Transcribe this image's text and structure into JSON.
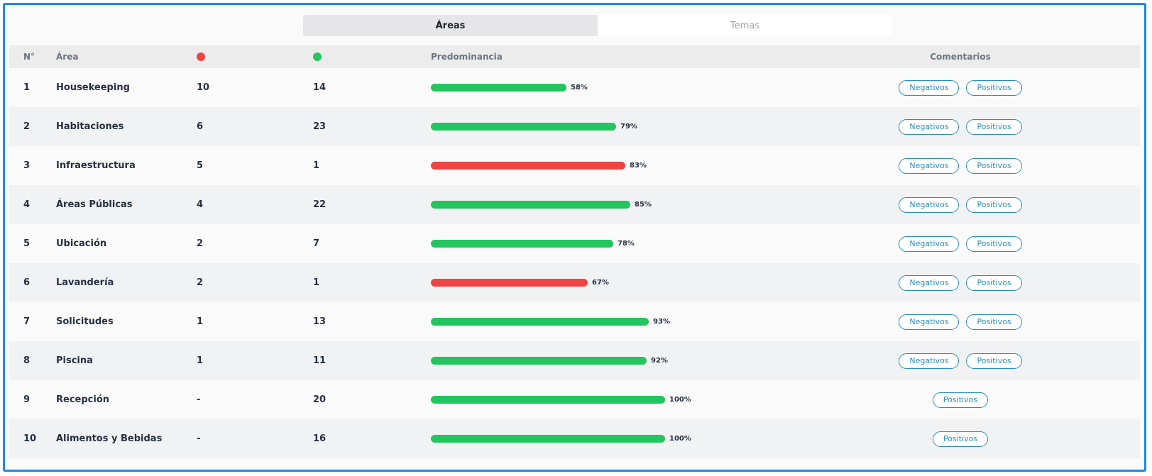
{
  "tabs": [
    {
      "label": "Áreas",
      "active": true
    },
    {
      "label": "Temas",
      "active": false
    }
  ],
  "header": {
    "num": "N°",
    "area": "Área",
    "negative_icon": "red-dot",
    "positive_icon": "green-dot",
    "predominance": "Predominancia",
    "comments": "Comentarios"
  },
  "colors": {
    "positive": "#22c55e",
    "negative": "#ef4444",
    "accent": "#2a8fbd",
    "frame": "#1e88e5"
  },
  "buttons": {
    "negative": "Negativos",
    "positive": "Positivos"
  },
  "rows": [
    {
      "num": "1",
      "area": "Housekeeping",
      "neg": "10",
      "pos": "14",
      "pct": "58%",
      "value": 58,
      "color": "green",
      "has_negative": true
    },
    {
      "num": "2",
      "area": "Habitaciones",
      "neg": "6",
      "pos": "23",
      "pct": "79%",
      "value": 79,
      "color": "green",
      "has_negative": true
    },
    {
      "num": "3",
      "area": "Infraestructura",
      "neg": "5",
      "pos": "1",
      "pct": "83%",
      "value": 83,
      "color": "red",
      "has_negative": true
    },
    {
      "num": "4",
      "area": "Áreas Públicas",
      "neg": "4",
      "pos": "22",
      "pct": "85%",
      "value": 85,
      "color": "green",
      "has_negative": true
    },
    {
      "num": "5",
      "area": "Ubicación",
      "neg": "2",
      "pos": "7",
      "pct": "78%",
      "value": 78,
      "color": "green",
      "has_negative": true
    },
    {
      "num": "6",
      "area": "Lavandería",
      "neg": "2",
      "pos": "1",
      "pct": "67%",
      "value": 67,
      "color": "red",
      "has_negative": true
    },
    {
      "num": "7",
      "area": "Solicitudes",
      "neg": "1",
      "pos": "13",
      "pct": "93%",
      "value": 93,
      "color": "green",
      "has_negative": true
    },
    {
      "num": "8",
      "area": "Piscina",
      "neg": "1",
      "pos": "11",
      "pct": "92%",
      "value": 92,
      "color": "green",
      "has_negative": true
    },
    {
      "num": "9",
      "area": "Recepción",
      "neg": "-",
      "pos": "20",
      "pct": "100%",
      "value": 100,
      "color": "green",
      "has_negative": false
    },
    {
      "num": "10",
      "area": "Alimentos y Bebidas",
      "neg": "-",
      "pos": "16",
      "pct": "100%",
      "value": 100,
      "color": "green",
      "has_negative": false
    }
  ]
}
